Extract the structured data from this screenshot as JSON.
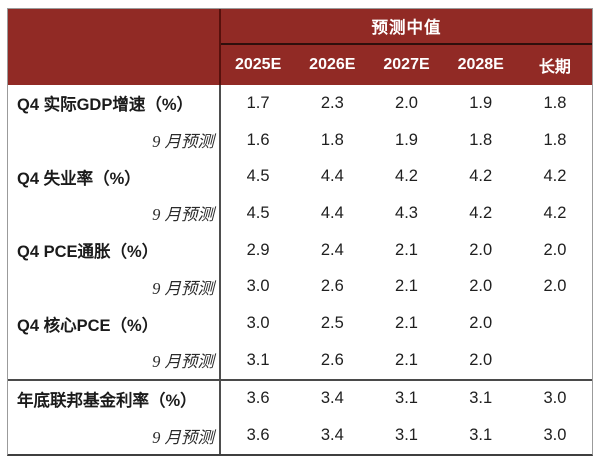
{
  "table": {
    "group_header": "预测中值",
    "cols": [
      "2025E",
      "2026E",
      "2027E",
      "2028E",
      "长期"
    ],
    "rows": [
      {
        "label": "Q4 实际GDP增速（%）",
        "type": "group",
        "v": [
          "1.7",
          "2.3",
          "2.0",
          "1.9",
          "1.8"
        ]
      },
      {
        "label": "9 月预测",
        "type": "sub",
        "v": [
          "1.6",
          "1.8",
          "1.9",
          "1.8",
          "1.8"
        ]
      },
      {
        "label": "Q4 失业率（%）",
        "type": "group",
        "v": [
          "4.5",
          "4.4",
          "4.2",
          "4.2",
          "4.2"
        ]
      },
      {
        "label": "9 月预测",
        "type": "sub",
        "v": [
          "4.5",
          "4.4",
          "4.3",
          "4.2",
          "4.2"
        ]
      },
      {
        "label": "Q4 PCE通胀（%）",
        "type": "group",
        "v": [
          "2.9",
          "2.4",
          "2.1",
          "2.0",
          "2.0"
        ]
      },
      {
        "label": "9 月预测",
        "type": "sub",
        "v": [
          "3.0",
          "2.6",
          "2.1",
          "2.0",
          "2.0"
        ]
      },
      {
        "label": "Q4 核心PCE（%）",
        "type": "group",
        "v": [
          "3.0",
          "2.5",
          "2.1",
          "2.0",
          ""
        ]
      },
      {
        "label": "9 月预测",
        "type": "sub",
        "v": [
          "3.1",
          "2.6",
          "2.1",
          "2.0",
          ""
        ]
      },
      {
        "label": "年底联邦基金利率（%）",
        "type": "group",
        "separator_above": true,
        "v": [
          "3.6",
          "3.4",
          "3.1",
          "3.1",
          "3.0"
        ]
      },
      {
        "label": "9 月预测",
        "type": "sub",
        "v": [
          "3.6",
          "3.4",
          "3.1",
          "3.1",
          "3.0"
        ]
      }
    ],
    "colors": {
      "header_bg": "#912a25",
      "header_text": "#ffffff",
      "body_text": "#1b1b1b",
      "divider": "#4e4e4e",
      "outer_border": "#9b9b9b"
    }
  },
  "chart_data": {
    "type": "table",
    "title": "预测中值",
    "columns": [
      "2025E",
      "2026E",
      "2027E",
      "2028E",
      "长期"
    ],
    "rows": [
      {
        "label": "Q4 实际GDP增速（%）",
        "values": [
          1.7,
          2.3,
          2.0,
          1.9,
          1.8
        ]
      },
      {
        "label": "Q4 实际GDP增速 - 9 月预测",
        "values": [
          1.6,
          1.8,
          1.9,
          1.8,
          1.8
        ]
      },
      {
        "label": "Q4 失业率（%）",
        "values": [
          4.5,
          4.4,
          4.2,
          4.2,
          4.2
        ]
      },
      {
        "label": "Q4 失业率 - 9 月预测",
        "values": [
          4.5,
          4.4,
          4.3,
          4.2,
          4.2
        ]
      },
      {
        "label": "Q4 PCE通胀（%）",
        "values": [
          2.9,
          2.4,
          2.1,
          2.0,
          2.0
        ]
      },
      {
        "label": "Q4 PCE通胀 - 9 月预测",
        "values": [
          3.0,
          2.6,
          2.1,
          2.0,
          2.0
        ]
      },
      {
        "label": "Q4 核心PCE（%）",
        "values": [
          3.0,
          2.5,
          2.1,
          2.0,
          null
        ]
      },
      {
        "label": "Q4 核心PCE - 9 月预测",
        "values": [
          3.1,
          2.6,
          2.1,
          2.0,
          null
        ]
      },
      {
        "label": "年底联邦基金利率（%）",
        "values": [
          3.6,
          3.4,
          3.1,
          3.1,
          3.0
        ]
      },
      {
        "label": "年底联邦基金利率 - 9 月预测",
        "values": [
          3.6,
          3.4,
          3.1,
          3.1,
          3.0
        ]
      }
    ]
  }
}
